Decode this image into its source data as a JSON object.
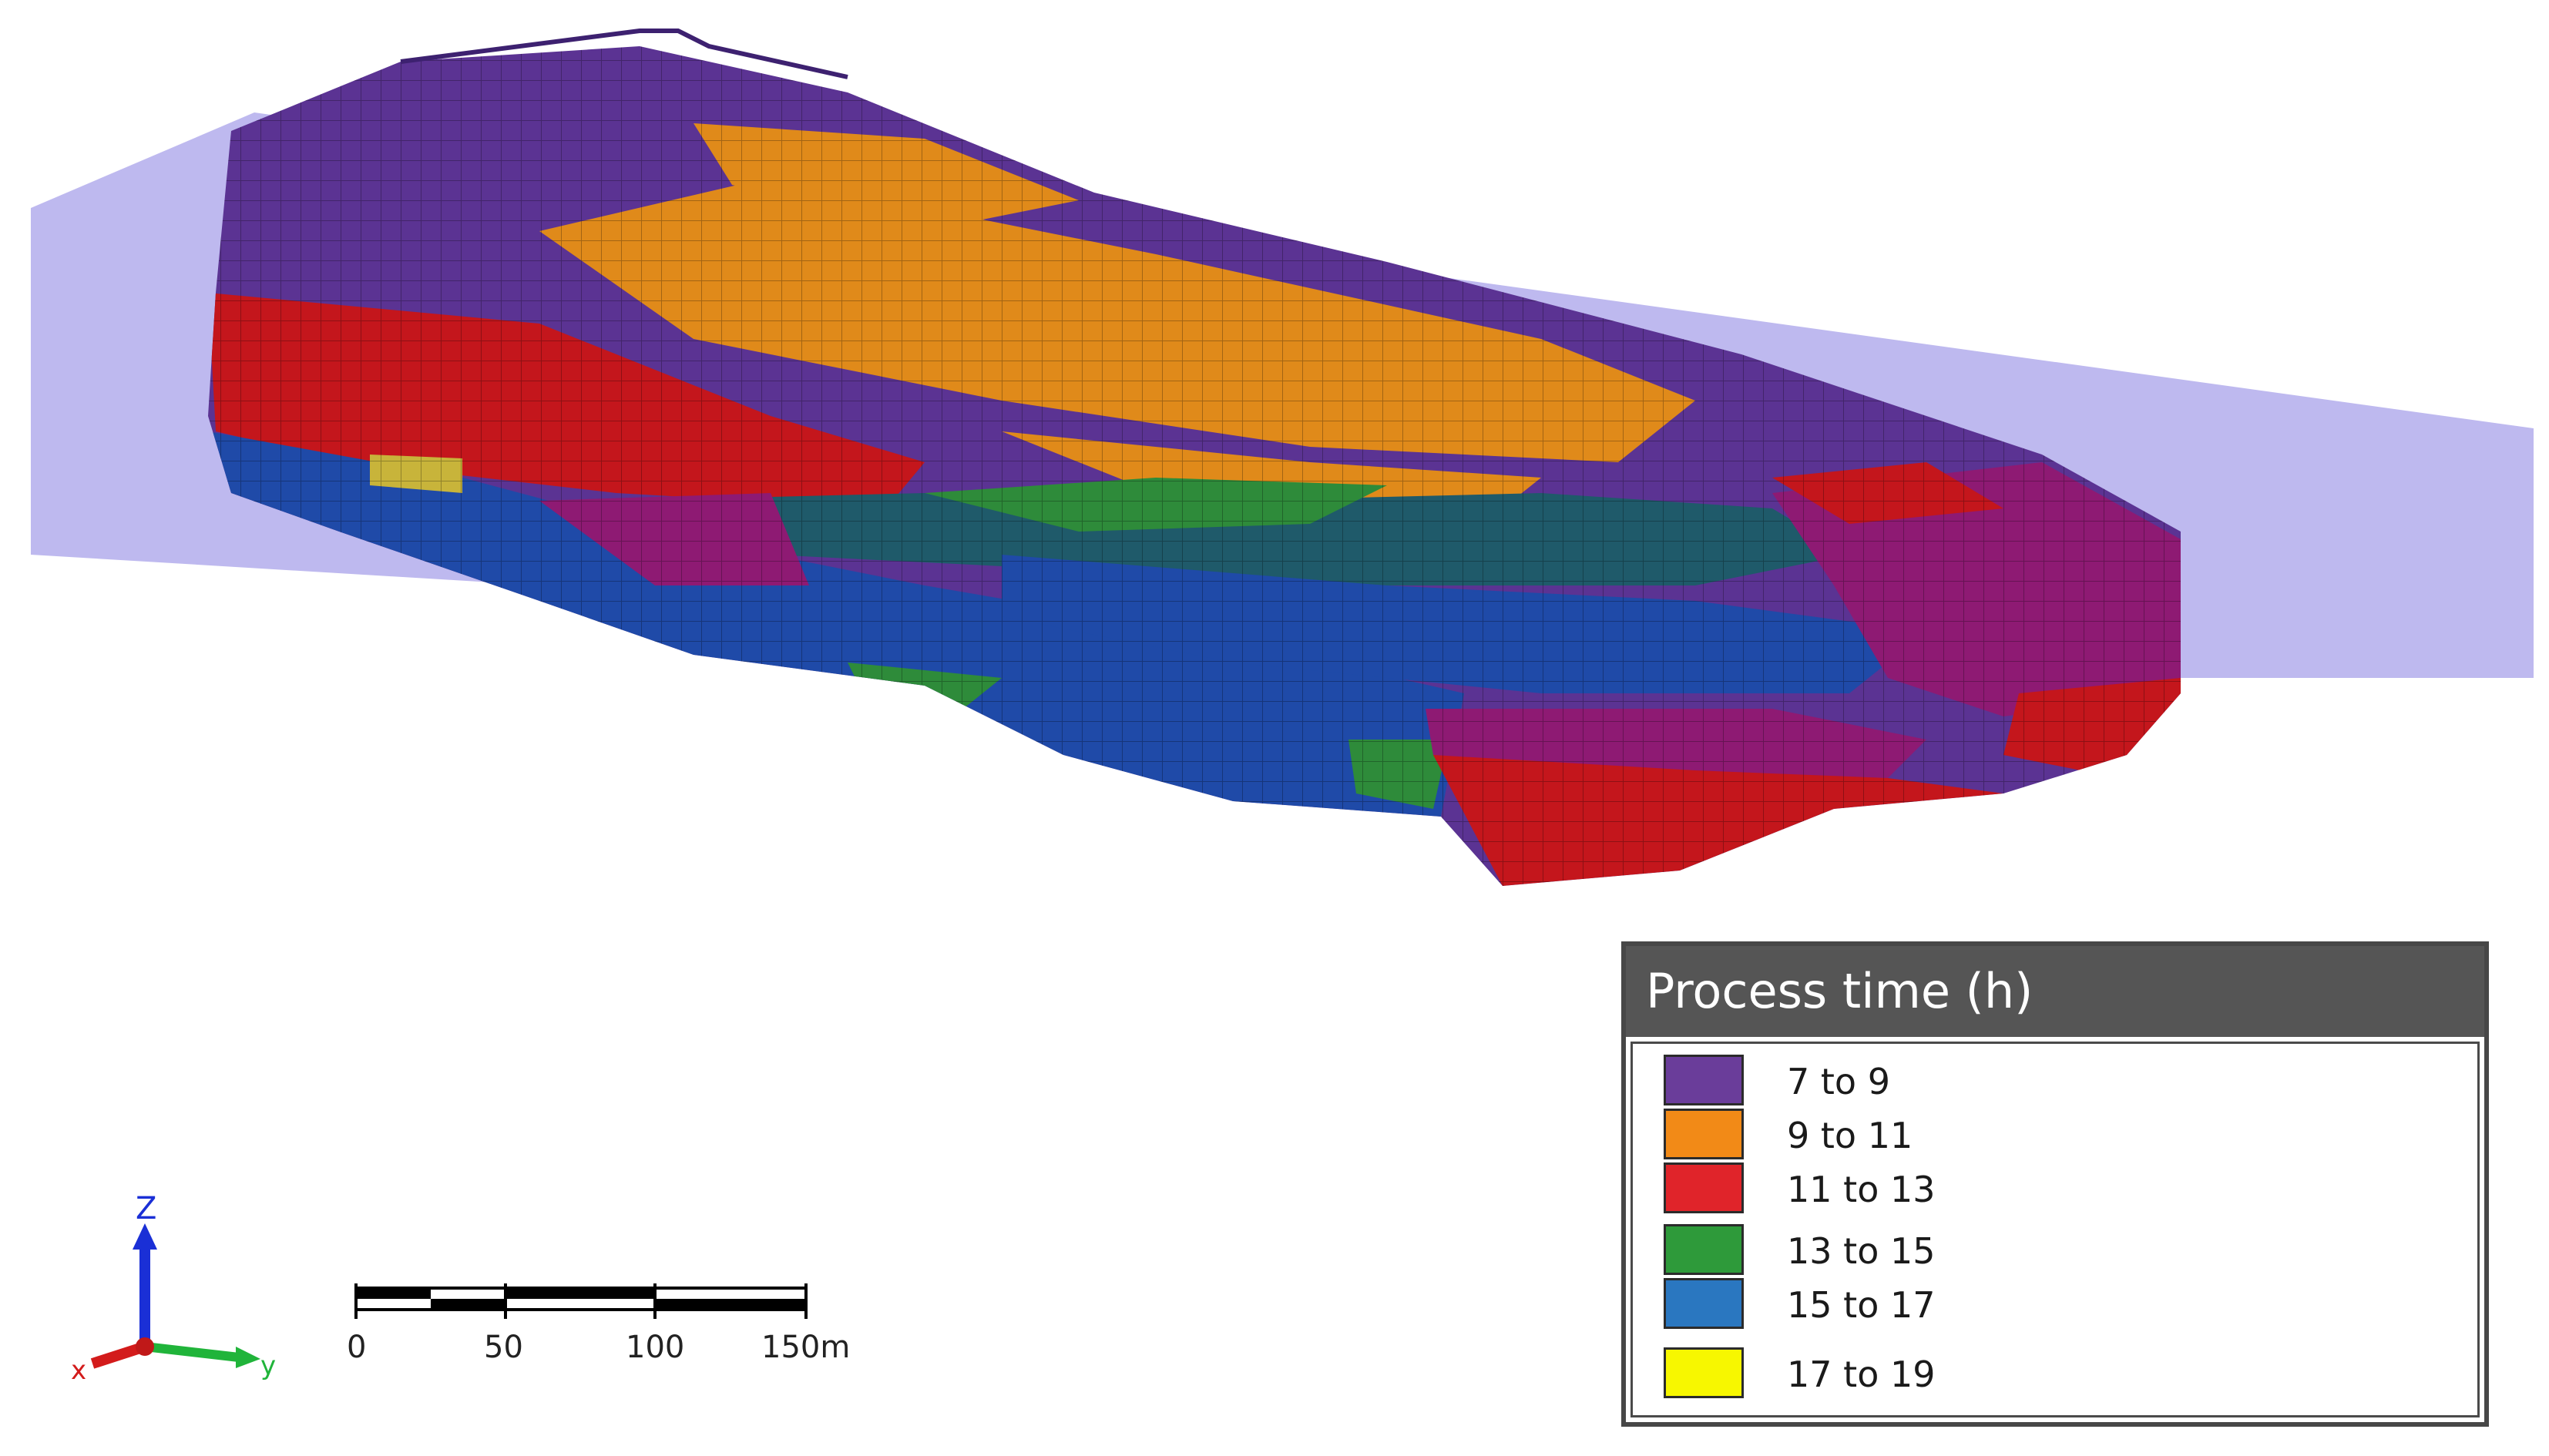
{
  "legend": {
    "title": "Process time (h)",
    "items": [
      {
        "label": "7 to 9",
        "color": "#6a3d9a"
      },
      {
        "label": "9 to 11",
        "color": "#f28a17"
      },
      {
        "label": "11 to 13",
        "color": "#e0242a"
      },
      {
        "label": "13 to 15",
        "color": "#2e9a3a"
      },
      {
        "label": "15 to 17",
        "color": "#2a77c0"
      },
      {
        "label": "17 to 19",
        "color": "#f7f700"
      }
    ]
  },
  "scale_bar": {
    "ticks": [
      "0",
      "50",
      "100",
      "150m"
    ]
  },
  "axes": {
    "z": "Z",
    "x": "x",
    "y": "y"
  },
  "model_colors": {
    "plane": "#b8b3ee",
    "purple": "#5b3393",
    "orange": "#e08a1a",
    "red": "#c4161c",
    "blue": "#1f4aa8",
    "teal": "#1f5a6a",
    "green": "#2e8b3a",
    "magenta": "#8e1a73",
    "yellow": "#c8b43a"
  }
}
